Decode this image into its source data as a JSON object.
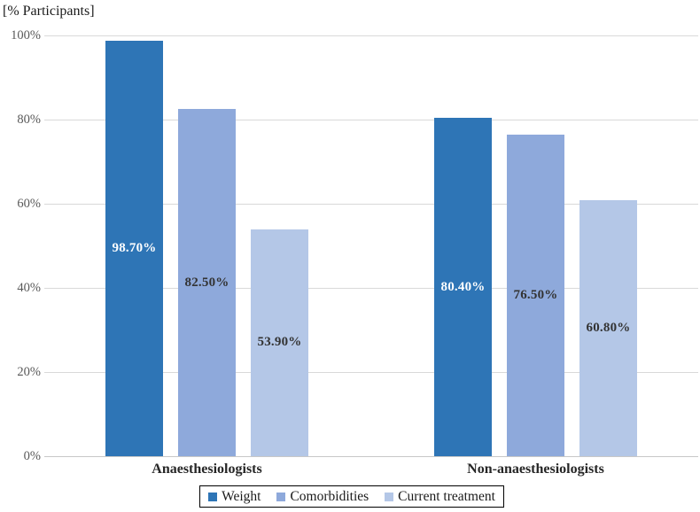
{
  "chart_data": {
    "type": "bar",
    "title": "",
    "ylabel": "[% Participants]",
    "xlabel": "",
    "categories": [
      "Anaesthesiologists",
      "Non-anaesthesiologists"
    ],
    "series": [
      {
        "name": "Weight",
        "color": "#2E75B6",
        "values": [
          98.7,
          80.4
        ],
        "value_labels": [
          "98.70%",
          "80.40%"
        ],
        "label_color": "#FFFFFF"
      },
      {
        "name": "Comorbidities",
        "color": "#8EA9DB",
        "values": [
          82.5,
          76.5
        ],
        "value_labels": [
          "82.50%",
          "76.50%"
        ],
        "label_color": "#333333"
      },
      {
        "name": "Current treatment",
        "color": "#B4C7E7",
        "values": [
          53.9,
          60.8
        ],
        "value_labels": [
          "53.90%",
          "60.80%"
        ],
        "label_color": "#333333"
      }
    ],
    "ylim": [
      0,
      100
    ],
    "ytick_values": [
      0,
      20,
      40,
      60,
      80,
      100
    ],
    "ytick_labels": [
      "0%",
      "20%",
      "40%",
      "60%",
      "80%",
      "100%"
    ],
    "grid": true,
    "legend_position": "bottom",
    "colors": {
      "gridline": "#D9D9D9",
      "axis_line": "#C8C8C8",
      "tick_text": "#595959"
    }
  }
}
